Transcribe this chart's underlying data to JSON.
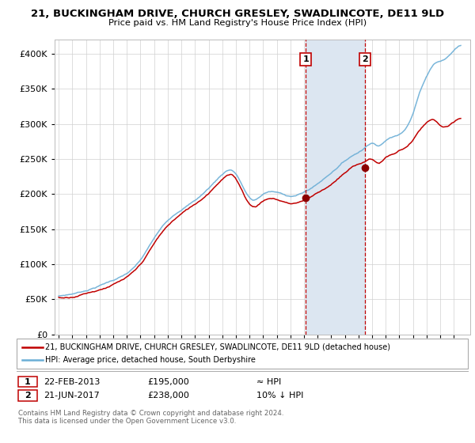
{
  "title_line1": "21, BUCKINGHAM DRIVE, CHURCH GRESLEY, SWADLINCOTE, DE11 9LD",
  "title_line2": "Price paid vs. HM Land Registry's House Price Index (HPI)",
  "legend_line1": "21, BUCKINGHAM DRIVE, CHURCH GRESLEY, SWADLINCOTE, DE11 9LD (detached house)",
  "legend_line2": "HPI: Average price, detached house, South Derbyshire",
  "annotation1_label": "1",
  "annotation1_date": "22-FEB-2013",
  "annotation1_price": "£195,000",
  "annotation1_hpi": "≈ HPI",
  "annotation2_label": "2",
  "annotation2_date": "21-JUN-2017",
  "annotation2_price": "£238,000",
  "annotation2_hpi": "10% ↓ HPI",
  "footer": "Contains HM Land Registry data © Crown copyright and database right 2024.\nThis data is licensed under the Open Government Licence v3.0.",
  "purchase1_year": 2013.12,
  "purchase1_value": 195000,
  "purchase2_year": 2017.47,
  "purchase2_value": 238000,
  "hpi_color": "#6baed6",
  "price_color": "#c00000",
  "shaded_color": "#dce6f1",
  "vline_color": "#c00000",
  "background_color": "#ffffff",
  "ylim": [
    0,
    420000
  ],
  "yticks": [
    0,
    50000,
    100000,
    150000,
    200000,
    250000,
    300000,
    350000,
    400000
  ]
}
